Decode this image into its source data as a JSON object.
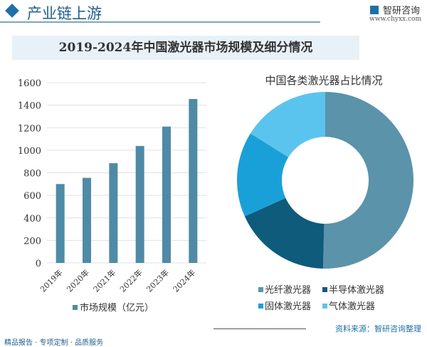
{
  "header": {
    "title": "产业链上游",
    "logo_text": "智研咨询",
    "url": "www.chyxx.com"
  },
  "chart_title": "2019-2024年中国激光器市场规模及细分情况",
  "chart_data": [
    {
      "type": "bar",
      "categories": [
        "2019年",
        "2020年",
        "2021年",
        "2022年",
        "2023年",
        "2024年"
      ],
      "series": [
        {
          "name": "市场规模（亿元）",
          "values": [
            700,
            755,
            885,
            1038,
            1210,
            1455
          ]
        }
      ],
      "ylim": [
        0,
        1600
      ],
      "yticks": [
        0,
        200,
        400,
        600,
        800,
        1000,
        1200,
        1400,
        1600
      ],
      "grid": true,
      "legend": "bottom",
      "color": "#4f8aa6"
    },
    {
      "type": "pie",
      "title": "中国各类激光器占比情况",
      "donut": true,
      "legend": "bottom",
      "labels": [
        "光纤激光器",
        "半导体激光器",
        "固体激光器",
        "气体激光器"
      ],
      "values": [
        50.4,
        17.9,
        15.6,
        16.1
      ],
      "colors": [
        "#5b93ab",
        "#0e5b7c",
        "#1aa0d8",
        "#5bc4ee"
      ]
    }
  ],
  "footer": {
    "left": "精品报告 · 专项定制 · 品质服务",
    "source": "资料来源：智研咨询整理"
  }
}
